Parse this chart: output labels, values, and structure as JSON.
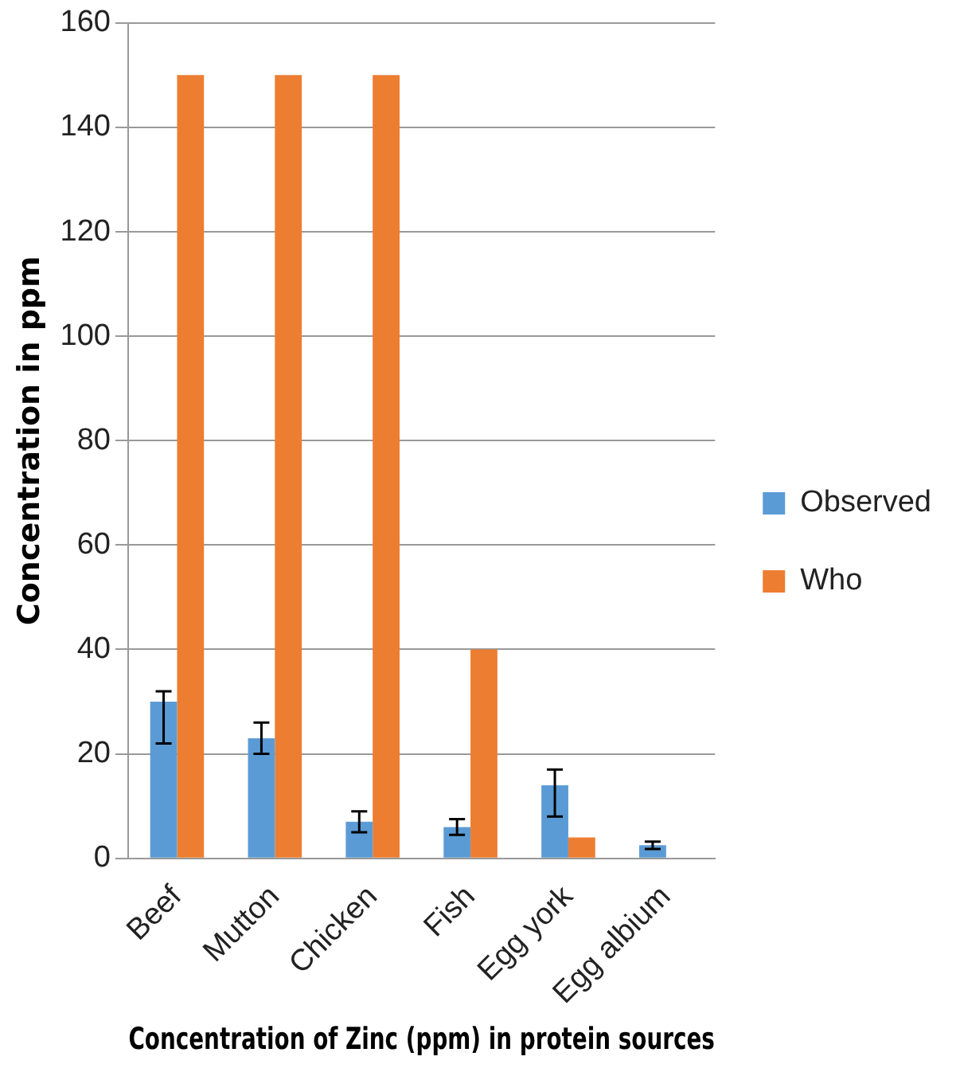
{
  "chart_data": {
    "type": "bar",
    "xlabel": "Concentration of Zinc (ppm) in protein sources",
    "ylabel": "Concentration in ppm",
    "categories": [
      "Beef",
      "Mutton",
      "Chicken",
      "Fish",
      "Egg york",
      "Egg albium"
    ],
    "series": [
      {
        "name": "Observed",
        "color": "#5b9bd5",
        "values": [
          30,
          23,
          7,
          6,
          14,
          2.5
        ],
        "errors": [
          [
            22,
            32
          ],
          3,
          2,
          1.5,
          [
            8,
            17
          ],
          0.7
        ]
      },
      {
        "name": "Who",
        "color": "#ed7d31",
        "values": [
          150,
          150,
          150,
          40,
          4,
          null
        ]
      }
    ],
    "ylim": [
      0,
      160
    ],
    "yticks": [
      0,
      20,
      40,
      60,
      80,
      100,
      120,
      140,
      160
    ],
    "grid": "y",
    "legend": "right"
  }
}
